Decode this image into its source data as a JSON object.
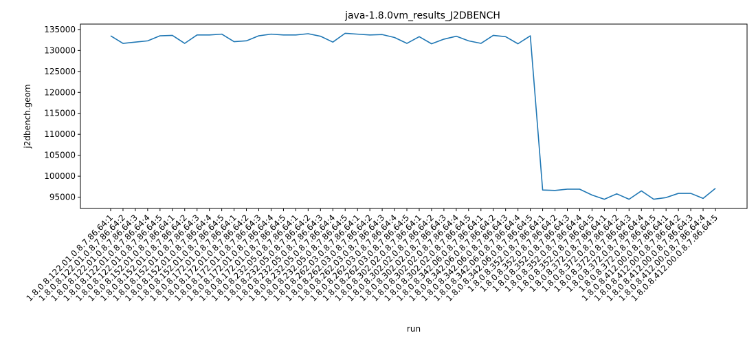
{
  "chart_data": {
    "type": "line",
    "title": "java-1.8.0vm_results_J2DBENCH",
    "xlabel": "run",
    "ylabel": "j2dbench.geom",
    "ylim": [
      92300,
      136300
    ],
    "yticks": [
      95000,
      100000,
      105000,
      110000,
      115000,
      120000,
      125000,
      130000,
      135000
    ],
    "grid": false,
    "series_color": "#1f77b4",
    "categories": [
      "1.8.0.8.122.01.0.8.7.86.64:1",
      "1.8.0.8.122.01.0.8.7.86.64:2",
      "1.8.0.8.122.01.0.8.7.86.64:3",
      "1.8.0.8.122.01.0.8.7.86.64:4",
      "1.8.0.8.122.01.0.8.7.86.64:5",
      "1.8.0.8.152.01.0.8.7.86.64:1",
      "1.8.0.8.152.01.0.8.7.86.64:2",
      "1.8.0.8.152.01.0.8.7.86.64:3",
      "1.8.0.8.152.01.0.8.7.86.64:4",
      "1.8.0.8.152.01.0.8.7.86.64:5",
      "1.8.0.8.172.01.0.8.7.86.64:1",
      "1.8.0.8.172.01.0.8.7.86.64:2",
      "1.8.0.8.172.01.0.8.7.86.64:3",
      "1.8.0.8.172.01.0.8.7.86.64:4",
      "1.8.0.8.172.01.0.8.7.86.64:5",
      "1.8.0.8.232.05.0.8.7.86.64:1",
      "1.8.0.8.232.05.0.8.7.86.64:2",
      "1.8.0.8.232.05.0.8.7.86.64:3",
      "1.8.0.8.232.05.0.8.7.86.64:4",
      "1.8.0.8.232.05.0.8.7.86.64:5",
      "1.8.0.8.262.03.0.8.7.86.64:1",
      "1.8.0.8.262.03.0.8.7.86.64:2",
      "1.8.0.8.262.03.0.8.7.86.64:3",
      "1.8.0.8.262.03.0.8.7.86.64:4",
      "1.8.0.8.262.03.0.8.7.86.64:5",
      "1.8.0.8.302.02.0.8.7.86.64:1",
      "1.8.0.8.302.02.0.8.7.86.64:2",
      "1.8.0.8.302.02.0.8.7.86.64:3",
      "1.8.0.8.302.02.0.8.7.86.64:4",
      "1.8.0.8.302.02.0.8.7.86.64:5",
      "1.8.0.8.342.06.0.8.7.86.64:1",
      "1.8.0.8.342.06.0.8.7.86.64:2",
      "1.8.0.8.342.06.0.8.7.86.64:3",
      "1.8.0.8.342.06.0.8.7.86.64:4",
      "1.8.0.8.342.06.0.8.7.86.64:5",
      "1.8.0.8.352.0.8.7.86.64:1",
      "1.8.0.8.352.0.8.7.86.64:2",
      "1.8.0.8.352.0.8.7.86.64:3",
      "1.8.0.8.352.0.8.7.86.64:4",
      "1.8.0.8.352.0.8.7.86.64:5",
      "1.8.0.8.372.0.8.7.86.64:1",
      "1.8.0.8.372.0.8.7.86.64:2",
      "1.8.0.8.372.0.8.7.86.64:3",
      "1.8.0.8.372.0.8.7.86.64:4",
      "1.8.0.8.372.0.8.7.86.64:5",
      "1.8.0.8.412.00.0.8.7.86.64:1",
      "1.8.0.8.412.00.0.8.7.86.64:2",
      "1.8.0.8.412.00.0.8.7.86.64:3",
      "1.8.0.8.412.00.0.8.7.86.64:4",
      "1.8.0.8.412.00.0.8.7.86.64:5"
    ],
    "series": [
      {
        "values": [
          133500,
          131700,
          132000,
          132300,
          133500,
          133600,
          131700,
          133700,
          133700,
          133900,
          132100,
          132300,
          133500,
          133900,
          133700,
          133700,
          134000,
          133400,
          132000,
          134100,
          133900,
          133700,
          133800,
          133100,
          131700,
          133300,
          131600,
          132700,
          133400,
          132300,
          131700,
          133600,
          133300,
          131600,
          133500,
          96700,
          96600,
          96900,
          96900,
          95500,
          94500,
          95800,
          94500,
          96500,
          94500,
          94900,
          95900,
          95900,
          94700,
          97100
        ]
      }
    ]
  }
}
